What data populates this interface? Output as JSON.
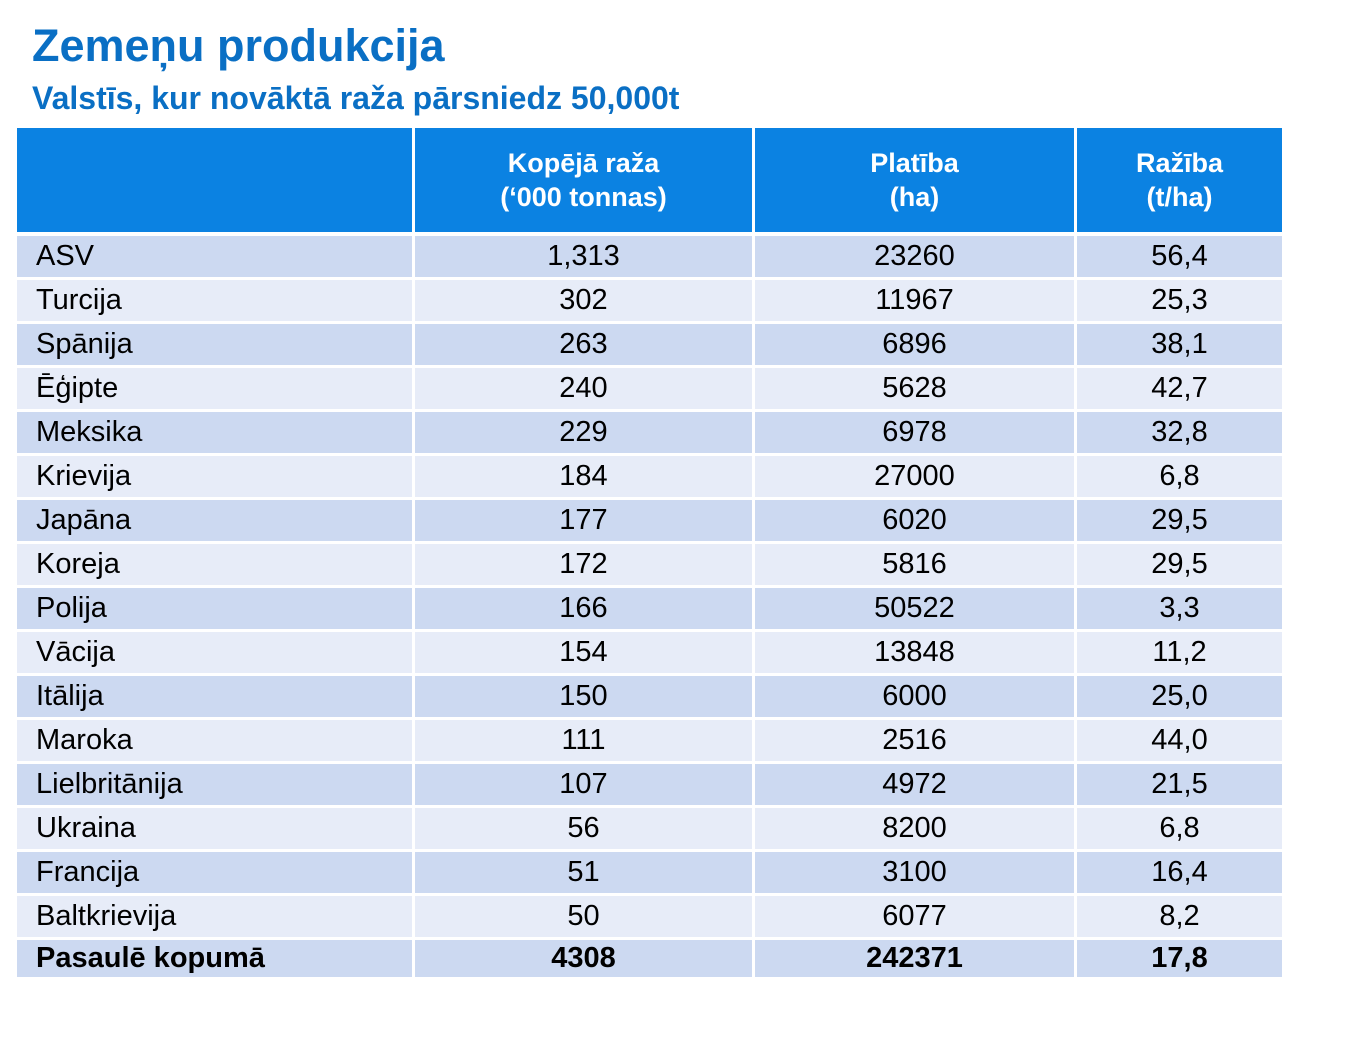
{
  "title": "Zemeņu produkcija",
  "subtitle": "Valstīs, kur novāktā raža pārsniedz 50,000t",
  "table": {
    "headers": [
      {
        "line1": "",
        "line2": ""
      },
      {
        "line1": "Kopējā raža",
        "line2": "(‘000 tonnas)"
      },
      {
        "line1": "Platība",
        "line2": "(ha)"
      },
      {
        "line1": "Ražība",
        "line2": "(t/ha)"
      }
    ],
    "rows": [
      [
        "ASV",
        "1,313",
        "23260",
        "56,4"
      ],
      [
        "Turcija",
        "302",
        "11967",
        "25,3"
      ],
      [
        "Spānija",
        "263",
        "6896",
        "38,1"
      ],
      [
        "Ēģipte",
        "240",
        "5628",
        "42,7"
      ],
      [
        "Meksika",
        "229",
        "6978",
        "32,8"
      ],
      [
        "Krievija",
        "184",
        "27000",
        "6,8"
      ],
      [
        "Japāna",
        "177",
        "6020",
        "29,5"
      ],
      [
        "Koreja",
        "172",
        "5816",
        "29,5"
      ],
      [
        "Polija",
        "166",
        "50522",
        "3,3"
      ],
      [
        "Vācija",
        "154",
        "13848",
        "11,2"
      ],
      [
        "Itālija",
        "150",
        "6000",
        "25,0"
      ],
      [
        "Maroka",
        "111",
        "2516",
        "44,0"
      ],
      [
        "Lielbritānija",
        "107",
        "4972",
        "21,5"
      ],
      [
        "Ukraina",
        "56",
        "8200",
        "6,8"
      ],
      [
        "Francija",
        "51",
        "3100",
        "16,4"
      ],
      [
        "Baltkrievija",
        "50",
        "6077",
        "8,2"
      ]
    ],
    "total": [
      "Pasaulē kopumā",
      "4308",
      "242371",
      "17,8"
    ]
  },
  "colors": {
    "title": "#0a6fc4",
    "header_bg": "#0b82e2",
    "row_dark": "#ccd9f1",
    "row_light": "#e7ecf8"
  }
}
